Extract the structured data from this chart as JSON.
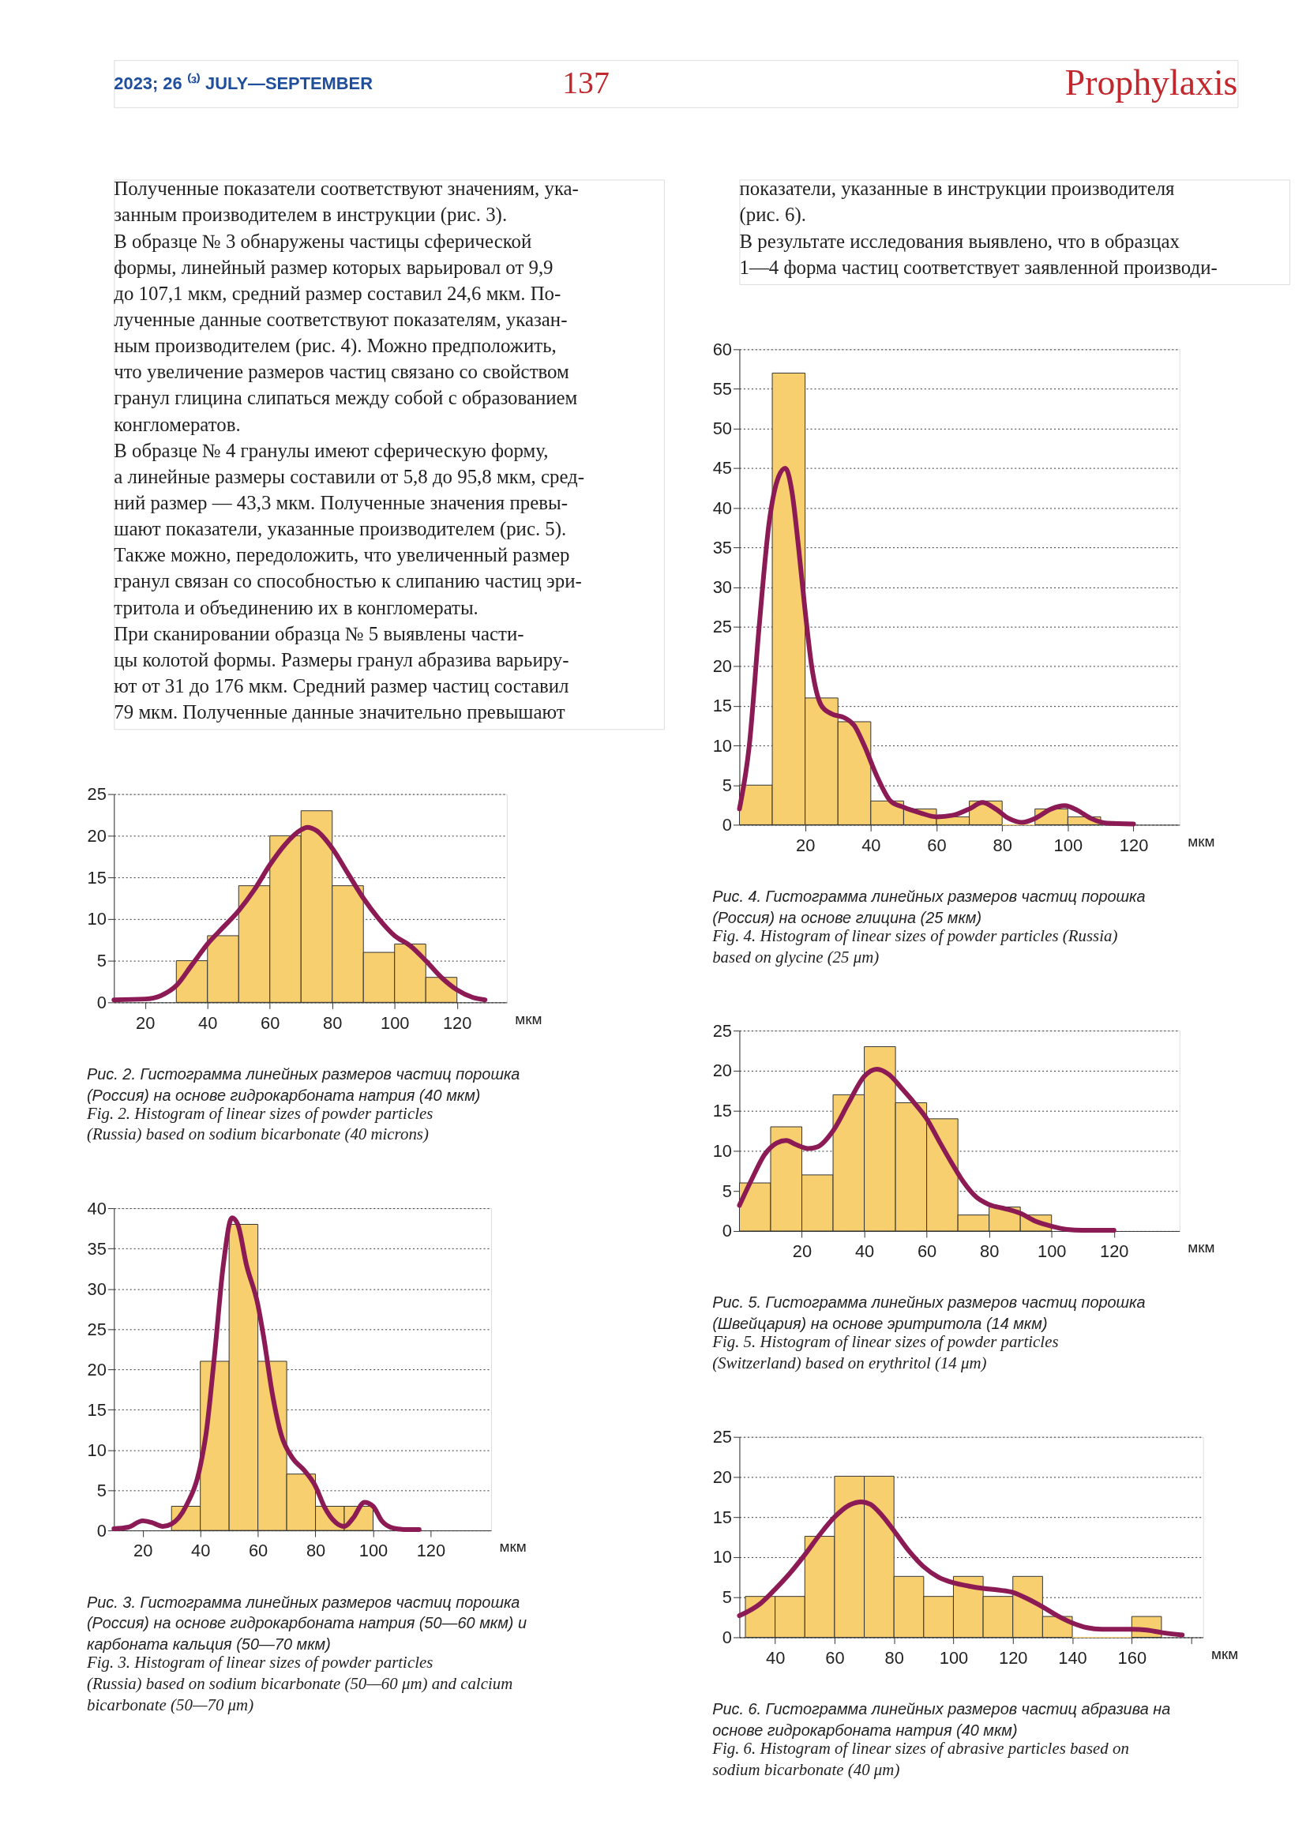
{
  "chart_data": [
    {
      "type": "other",
      "annotations": [
        "2023; 26 ⁽³⁾ JULY—SEPTEMBER",
        "137",
        "Prophylaxis"
      ]
    },
    {
      "type": "other",
      "annotations": [
        "Полученные показатели соответствуют значениям, ука-",
        "занным производителем в инструкции (рис. 3).",
        "В образце № 3 обнаружены частицы сферической",
        "формы, линейный размер которых варьировал от 9,9",
        "до 107,1 мкм, средний размер составил 24,6 мкм. По-",
        "лученные данные соответствуют показателям, указан-",
        "ным производителем (рис. 4). Можно предположить,",
        "что увеличение размеров частиц связано со свойством",
        "гранул глицина слипаться между собой с образованием",
        "конгломератов.",
        "В образце № 4 гранулы имеют сферическую форму,",
        "а линейные размеры составили от 5,8 до 95,8 мкм, сред-",
        "ний размер — 43,3 мкм. Полученные значения превы-",
        "шают показатели, указанные производителем (рис. 5).",
        "Также можно, передоложить, что увеличенный размер",
        "гранул связан со способностью к слипанию частиц эри-",
        "тритола и объединению их в конгломераты.",
        "При сканировании образца № 5 выявлены части-",
        "цы колотой формы. Размеры гранул абразива варьиру-",
        "ют от 31 до 176 мкм. Средний размер частиц составил",
        "79 мкм. Полученные данные значительно превышают"
      ]
    },
    {
      "type": "histogram",
      "title": "Рис. 2. Гистограмма линейных размеров частиц порошка (Россия) на основе гидрокарбоната натрия (40 мкм)",
      "subtitle": "Fig. 2. Histogram of linear sizes of powder particles (Russia) based on sodium bicarbonate (40 microns)",
      "xlabel": "мкм",
      "bins": [
        30,
        40,
        50,
        60,
        70,
        80,
        90,
        100,
        110,
        120
      ],
      "values": [
        5,
        8,
        14,
        20,
        23,
        14,
        6,
        7,
        3
      ],
      "color": "#f7cf6e",
      "xlim": [
        10,
        136
      ],
      "xticks": [
        20,
        40,
        60,
        80,
        100,
        120
      ],
      "ylim": [
        0,
        25
      ],
      "yticks": [
        0,
        5,
        10,
        15,
        20,
        25
      ],
      "grid": "y",
      "series": [
        {
          "type": "line",
          "color": "#8b1a55",
          "x": [
            10,
            20,
            25,
            30,
            35,
            40,
            45,
            50,
            55,
            60,
            65,
            70,
            72,
            75,
            80,
            85,
            90,
            95,
            100,
            105,
            110,
            115,
            120,
            125,
            129
          ],
          "values": [
            0.3,
            0.4,
            0.8,
            2,
            4.5,
            7,
            9,
            11,
            13.5,
            16.5,
            19,
            20.7,
            21,
            20.6,
            18.5,
            15.5,
            12.5,
            10,
            8,
            6.8,
            5,
            3,
            1.5,
            0.6,
            0.3
          ]
        }
      ]
    },
    {
      "type": "histogram",
      "title": "Рис. 3. Гистограмма линейных размеров частиц порошка (Россия) на основе гидрокарбоната натрия (50—60 мкм) и карбоната кальция (50—70 мкм)",
      "subtitle": "Fig. 3. Histogram of linear sizes of powder particles (Russia) based on sodium bicarbonate (50—60 μm) and calcium bicarbonate (50—70 μm)",
      "xlabel": "мкм",
      "bins": [
        30,
        40,
        50,
        60,
        70,
        80,
        90,
        100
      ],
      "values": [
        3,
        21,
        38,
        21,
        7,
        3,
        3
      ],
      "color": "#f7cf6e",
      "xlim": [
        10,
        141
      ],
      "xticks": [
        20,
        40,
        60,
        80,
        100,
        120
      ],
      "ylim": [
        0,
        40
      ],
      "yticks": [
        0,
        5,
        10,
        15,
        20,
        25,
        30,
        35,
        40
      ],
      "grid": "y",
      "series": [
        {
          "type": "line",
          "color": "#8b1a55",
          "x": [
            10,
            15,
            20,
            23,
            27,
            30,
            35,
            40,
            42,
            45,
            48,
            51,
            53,
            56,
            60,
            62,
            65,
            68,
            72,
            76,
            80,
            83,
            87,
            90,
            93,
            97,
            100,
            103,
            107,
            112,
            116
          ],
          "values": [
            0.2,
            0.4,
            1.2,
            1,
            0.5,
            0.8,
            3,
            8,
            12,
            22,
            33,
            38.8,
            38,
            33,
            28,
            24,
            17,
            12,
            9,
            7.5,
            5.5,
            3,
            1,
            0.5,
            1.5,
            3.5,
            3,
            1.2,
            0.3,
            0.1,
            0.1
          ]
        }
      ]
    },
    {
      "type": "other",
      "annotations": [
        "показатели, указанные в инструкции производителя",
        "(рис. 6).",
        "В результате исследования выявлено, что в образцах",
        "1—4 форма частиц соответствует заявленной производи-"
      ]
    },
    {
      "type": "histogram",
      "title": "Рис. 4. Гистограмма линейных размеров частиц порошка (Россия) на основе глицина (25 мкм)",
      "subtitle": "Fig. 4. Histogram of linear sizes of powder particles (Russia) based on glycine (25 μm)",
      "xlabel": "мкм",
      "bins": [
        0,
        10,
        20,
        30,
        40,
        50,
        60,
        70,
        80,
        90,
        100,
        110
      ],
      "values": [
        5,
        57,
        16,
        13,
        3,
        2,
        1,
        3,
        0,
        2,
        1
      ],
      "color": "#f7cf6e",
      "xlim": [
        0,
        134
      ],
      "xticks": [
        20,
        40,
        60,
        80,
        100,
        120
      ],
      "ylim": [
        0,
        60
      ],
      "yticks": [
        0,
        5,
        10,
        15,
        20,
        25,
        30,
        35,
        40,
        45,
        50,
        55,
        60
      ],
      "grid": "y",
      "series": [
        {
          "type": "line",
          "color": "#8b1a55",
          "x": [
            0,
            3,
            6,
            9,
            12,
            14,
            16,
            18,
            20,
            22,
            25,
            28,
            32,
            35,
            38,
            42,
            46,
            50,
            55,
            60,
            65,
            70,
            74,
            78,
            82,
            86,
            90,
            95,
            99,
            103,
            107,
            112,
            120
          ],
          "values": [
            2,
            10,
            25,
            38,
            44,
            45,
            42,
            35,
            27,
            20,
            15,
            14,
            13.5,
            12.5,
            10,
            6,
            3,
            2.2,
            1.5,
            1,
            1.2,
            2,
            2.8,
            2,
            0.8,
            0.3,
            0.8,
            2,
            2.4,
            1.8,
            0.8,
            0.2,
            0.1
          ]
        }
      ]
    },
    {
      "type": "histogram",
      "title": "Рис. 5. Гистограмма линейных размеров частиц порошка (Швейцария) на основе эритритола (14 мкм)",
      "subtitle": "Fig. 5. Histogram of linear sizes of powder particles (Switzerland) based on erythritol (14 μm)",
      "xlabel": "мкм",
      "bins": [
        0,
        10,
        20,
        30,
        40,
        50,
        60,
        70,
        80,
        90,
        100
      ],
      "values": [
        6,
        13,
        7,
        17,
        23,
        16,
        14,
        2,
        3,
        2
      ],
      "color": "#f7cf6e",
      "xlim": [
        0,
        141
      ],
      "xticks": [
        20,
        40,
        60,
        80,
        100,
        120
      ],
      "ylim": [
        0,
        25
      ],
      "yticks": [
        0,
        5,
        10,
        15,
        20,
        25
      ],
      "grid": "y",
      "series": [
        {
          "type": "line",
          "color": "#8b1a55",
          "x": [
            0,
            4,
            8,
            12,
            15,
            18,
            22,
            25,
            30,
            35,
            40,
            44,
            48,
            52,
            56,
            60,
            64,
            68,
            72,
            76,
            80,
            85,
            90,
            95,
            100,
            105,
            110,
            120
          ],
          "values": [
            3.2,
            6.5,
            9.5,
            11,
            11.3,
            10.8,
            10.3,
            10.5,
            12.5,
            16,
            19.3,
            20.2,
            19.5,
            17.8,
            16,
            14,
            11.2,
            8.5,
            6,
            4.2,
            3.3,
            2.8,
            2.2,
            1.2,
            0.6,
            0.2,
            0.1,
            0.1
          ]
        }
      ]
    },
    {
      "type": "histogram",
      "title": "Рис. 6. Гистограмма линейных размеров частиц абразива на основе гидрокарбоната натрия (40 мкм)",
      "subtitle": "Fig. 6. Histogram of linear sizes of abrasive particles based on sodium bicarbonate (40 μm)",
      "xlabel": "мкм",
      "bins": [
        30,
        40,
        50,
        60,
        70,
        80,
        90,
        100,
        110,
        120,
        130,
        140,
        150,
        160,
        170
      ],
      "values": [
        5.1,
        5.1,
        12.6,
        20.1,
        20.1,
        7.6,
        5.1,
        7.6,
        5.1,
        7.6,
        2.6,
        0,
        0,
        2.6
      ],
      "color": "#f7cf6e",
      "xlim": [
        28,
        184
      ],
      "xticks": [
        40,
        60,
        80,
        100,
        120,
        140,
        160,
        {
          "value": 180,
          "label": null
        }
      ],
      "ylim": [
        0,
        25
      ],
      "yticks": [
        0,
        5,
        10,
        15,
        20,
        25
      ],
      "grid": "y",
      "series": [
        {
          "type": "line",
          "color": "#8b1a55",
          "x": [
            28,
            35,
            40,
            45,
            50,
            55,
            60,
            65,
            69,
            72,
            76,
            80,
            85,
            90,
            95,
            100,
            105,
            110,
            115,
            120,
            125,
            130,
            135,
            140,
            145,
            150,
            160,
            165,
            170,
            177
          ],
          "values": [
            2.7,
            4.2,
            6,
            8,
            10.3,
            12.8,
            15,
            16.5,
            16.9,
            16.6,
            15.2,
            13.3,
            10.8,
            8.8,
            7.5,
            6.8,
            6.4,
            6.1,
            5.9,
            5.6,
            4.8,
            3.8,
            2.7,
            1.8,
            1.2,
            1,
            1,
            0.9,
            0.6,
            0.3
          ]
        }
      ]
    }
  ]
}
